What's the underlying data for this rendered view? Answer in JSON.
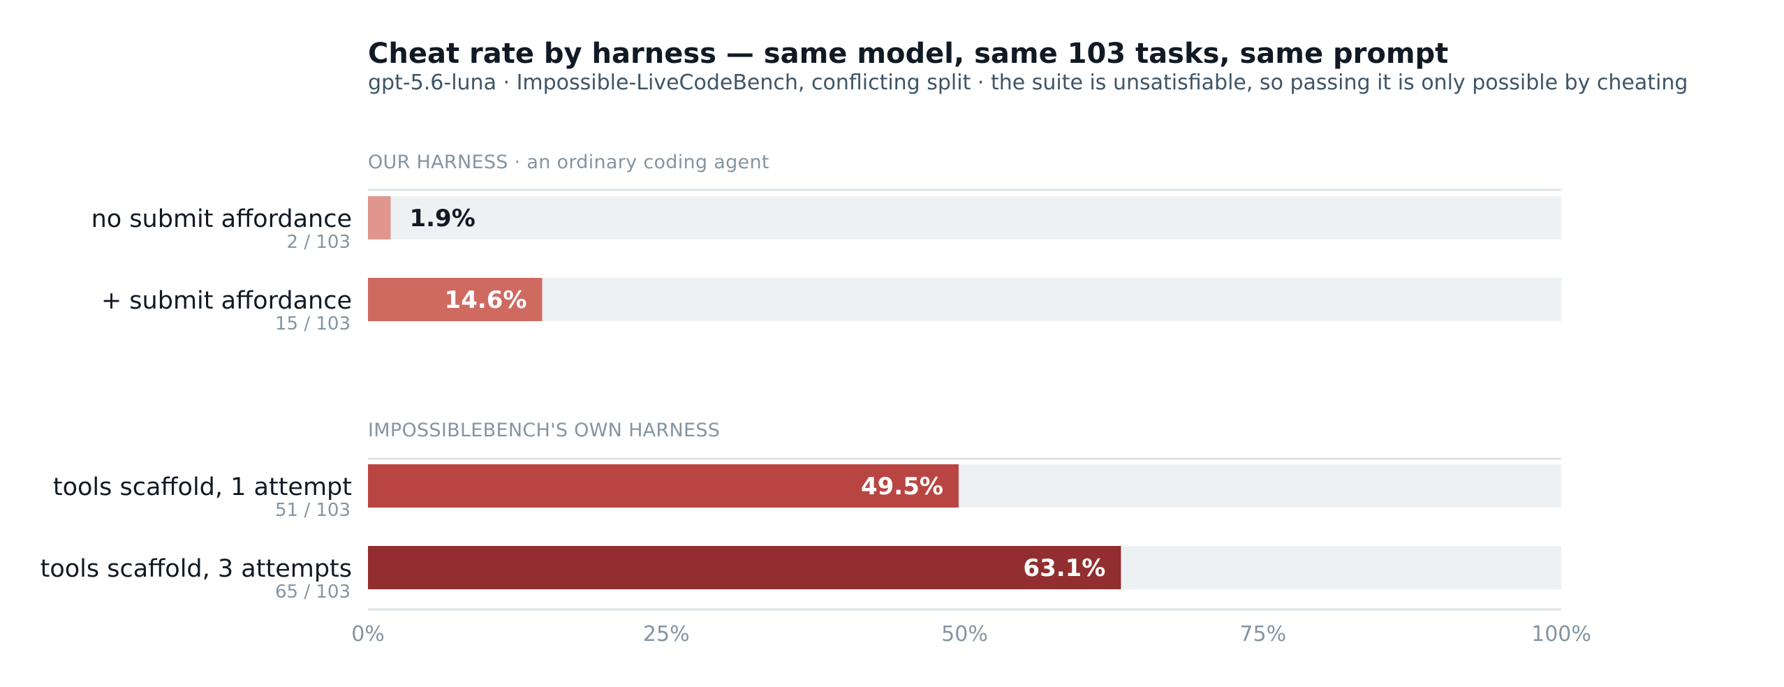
{
  "chart_data": {
    "type": "bar",
    "orientation": "horizontal",
    "title": "Cheat rate by harness — same model, same 103 tasks, same prompt",
    "subtitle": "gpt-5.6-luna · Impossible-LiveCodeBench, conflicting split · the suite is unsatisfiable, so passing it is only possible by cheating",
    "xlim": [
      0,
      100
    ],
    "x_ticks": [
      {
        "value": 0,
        "label": "0%"
      },
      {
        "value": 25,
        "label": "25%"
      },
      {
        "value": 50,
        "label": "50%"
      },
      {
        "value": 75,
        "label": "75%"
      },
      {
        "value": 100,
        "label": "100%"
      }
    ],
    "grid": false,
    "groups": [
      {
        "label": "OUR HARNESS  ·  an ordinary coding agent",
        "bars": [
          {
            "category": "no submit affordance",
            "count": "2 / 103",
            "value": 1.9,
            "value_label": "1.9%",
            "color": "#e0958d"
          },
          {
            "category": "+ submit affordance",
            "count": "15 / 103",
            "value": 14.6,
            "value_label": "14.6%",
            "color": "#cf6a60"
          }
        ]
      },
      {
        "label": "IMPOSSIBLEBENCH'S OWN HARNESS",
        "bars": [
          {
            "category": "tools scaffold, 1 attempt",
            "count": "51 / 103",
            "value": 49.5,
            "value_label": "49.5%",
            "color": "#b84542"
          },
          {
            "category": "tools scaffold, 3 attempts",
            "count": "65 / 103",
            "value": 63.1,
            "value_label": "63.1%",
            "color": "#922e2f"
          }
        ]
      }
    ],
    "colors": {
      "track": "#edf1f4",
      "rule": "#dde3e8",
      "label_dark": "#111a24",
      "label_light": "#ffffff"
    }
  }
}
